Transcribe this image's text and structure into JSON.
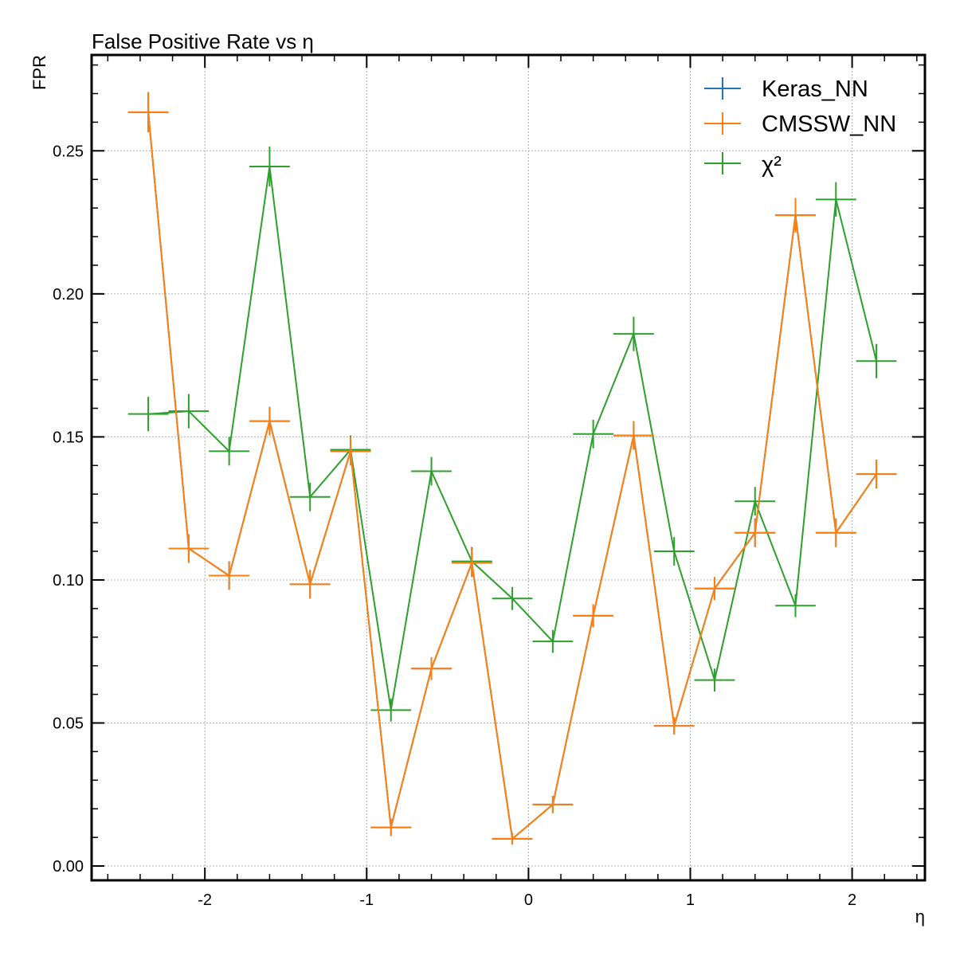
{
  "chart_data": {
    "type": "line",
    "title": "False Positive Rate vs η",
    "xlabel": "η",
    "ylabel": "FPR",
    "xlim": [
      -2.7,
      2.45
    ],
    "ylim": [
      -0.005,
      0.2835
    ],
    "xticks": [
      -2,
      -1,
      0,
      1,
      2
    ],
    "xtick_labels": [
      "-2",
      "-1",
      "0",
      "1",
      "2"
    ],
    "yticks": [
      0.0,
      0.05,
      0.1,
      0.15,
      0.2,
      0.25
    ],
    "ytick_labels": [
      "0.00",
      "0.05",
      "0.10",
      "0.15",
      "0.20",
      "0.25"
    ],
    "grid": true,
    "legend_position": "top-right",
    "x": [
      -2.35,
      -2.1,
      -1.85,
      -1.6,
      -1.35,
      -1.1,
      -0.85,
      -0.6,
      -0.35,
      -0.1,
      0.15,
      0.4,
      0.65,
      0.9,
      1.15,
      1.4,
      1.65,
      1.9,
      2.15
    ],
    "x_err": 0.125,
    "series": [
      {
        "name": "Keras_NN",
        "color": "#1f77b4",
        "values": [
          0.2635,
          0.111,
          0.1015,
          0.1555,
          0.0985,
          0.145,
          0.0135,
          0.069,
          0.106,
          0.0095,
          0.0215,
          0.0875,
          0.1505,
          0.049,
          0.097,
          0.1165,
          0.2275,
          0.1165,
          0.137
        ],
        "errors": [
          0.007,
          0.005,
          0.005,
          0.005,
          0.005,
          0.005,
          0.003,
          0.004,
          0.005,
          0.002,
          0.003,
          0.004,
          0.005,
          0.003,
          0.004,
          0.005,
          0.006,
          0.005,
          0.005
        ]
      },
      {
        "name": "CMSSW_NN",
        "color": "#ff7f0e",
        "values": [
          0.2635,
          0.111,
          0.1015,
          0.1555,
          0.0985,
          0.145,
          0.0135,
          0.069,
          0.106,
          0.0095,
          0.0215,
          0.0875,
          0.1505,
          0.049,
          0.097,
          0.1165,
          0.2275,
          0.1165,
          0.137
        ],
        "errors": [
          0.007,
          0.005,
          0.005,
          0.005,
          0.005,
          0.005,
          0.003,
          0.004,
          0.005,
          0.002,
          0.003,
          0.004,
          0.005,
          0.003,
          0.004,
          0.005,
          0.006,
          0.005,
          0.005
        ]
      },
      {
        "name": "χ²",
        "color": "#2ca02c",
        "values": [
          0.158,
          0.159,
          0.145,
          0.2445,
          0.129,
          0.1455,
          0.0545,
          0.138,
          0.1065,
          0.0935,
          0.0785,
          0.151,
          0.186,
          0.11,
          0.065,
          0.1275,
          0.091,
          0.233,
          0.1765
        ],
        "errors": [
          0.006,
          0.006,
          0.005,
          0.007,
          0.005,
          0.005,
          0.004,
          0.005,
          0.005,
          0.004,
          0.004,
          0.005,
          0.006,
          0.005,
          0.004,
          0.005,
          0.004,
          0.006,
          0.006
        ]
      }
    ]
  }
}
